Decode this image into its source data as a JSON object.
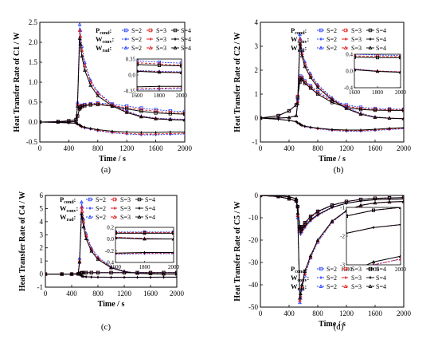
{
  "figure": {
    "legend": {
      "rows": [
        "P",
        "W",
        "W"
      ],
      "row_subscripts": [
        "cond",
        "conv",
        "rad"
      ],
      "cols": [
        "S=2",
        "S=3",
        "S=4"
      ]
    },
    "colors": {
      "S=2": "#1f3cff",
      "S=3": "#e01818",
      "S=4": "#000000"
    }
  },
  "chart_data": [
    {
      "type": "line",
      "panel_label": "(a)",
      "xlabel": "Time / s",
      "ylabel": "Heat Transfer Rate of C1 / W",
      "xlim": [
        0,
        2000
      ],
      "ylim": [
        -0.5,
        2.5
      ],
      "xticks": [
        0,
        400,
        800,
        1200,
        1600,
        2000
      ],
      "yticks": [
        -0.5,
        0.0,
        0.5,
        1.0,
        1.5,
        2.0,
        2.5
      ],
      "x": [
        0,
        250,
        400,
        500,
        520,
        550,
        560,
        580,
        620,
        700,
        800,
        1000,
        1200,
        1400,
        1600,
        1800,
        2000
      ],
      "series": [
        {
          "name": "P_cond S=2",
          "values": [
            0,
            0.01,
            0.03,
            0.06,
            0.15,
            0.36,
            0.4,
            0.42,
            0.44,
            0.46,
            0.48,
            0.45,
            0.4,
            0.35,
            0.31,
            0.28,
            0.26
          ]
        },
        {
          "name": "P_cond S=3",
          "values": [
            0,
            0.01,
            0.03,
            0.06,
            0.15,
            0.34,
            0.38,
            0.4,
            0.42,
            0.44,
            0.46,
            0.42,
            0.36,
            0.31,
            0.27,
            0.24,
            0.22
          ]
        },
        {
          "name": "P_cond S=4",
          "values": [
            0,
            0.01,
            0.03,
            0.06,
            0.15,
            0.33,
            0.37,
            0.39,
            0.41,
            0.43,
            0.44,
            0.4,
            0.33,
            0.27,
            0.23,
            0.21,
            0.2
          ]
        },
        {
          "name": "W_conv S=2",
          "values": [
            0,
            -0.01,
            -0.02,
            -0.03,
            -0.05,
            -0.08,
            -0.1,
            -0.12,
            -0.15,
            -0.18,
            -0.22,
            -0.27,
            -0.3,
            -0.32,
            -0.32,
            -0.31,
            -0.3
          ]
        },
        {
          "name": "W_conv S=3",
          "values": [
            0,
            -0.01,
            -0.02,
            -0.03,
            -0.05,
            -0.08,
            -0.1,
            -0.12,
            -0.14,
            -0.17,
            -0.21,
            -0.26,
            -0.29,
            -0.3,
            -0.3,
            -0.29,
            -0.28
          ]
        },
        {
          "name": "W_conv S=4",
          "values": [
            0,
            -0.01,
            -0.02,
            -0.03,
            -0.05,
            -0.07,
            -0.09,
            -0.11,
            -0.13,
            -0.16,
            -0.19,
            -0.23,
            -0.25,
            -0.26,
            -0.26,
            -0.25,
            -0.25
          ]
        },
        {
          "name": "W_rad S=2",
          "values": [
            0,
            0.0,
            0.0,
            0.02,
            0.5,
            2.45,
            2.3,
            1.9,
            1.5,
            1.05,
            0.75,
            0.45,
            0.28,
            0.15,
            0.1,
            0.08,
            0.07
          ]
        },
        {
          "name": "W_rad S=3",
          "values": [
            0,
            0.0,
            0.0,
            0.02,
            0.45,
            2.3,
            2.15,
            1.8,
            1.42,
            1.0,
            0.72,
            0.43,
            0.26,
            0.14,
            0.09,
            0.07,
            0.06
          ]
        },
        {
          "name": "W_rad S=4",
          "values": [
            0,
            0.0,
            0.0,
            0.02,
            0.4,
            2.1,
            1.95,
            1.65,
            1.3,
            0.92,
            0.66,
            0.4,
            0.24,
            0.13,
            0.08,
            0.06,
            0.05
          ]
        }
      ],
      "inset": {
        "xlim": [
          1600,
          2000
        ],
        "ylim": [
          -0.35,
          0.35
        ],
        "xticks": [
          1600,
          1800,
          2000
        ],
        "yticks": [
          -0.35,
          0.0,
          0.35
        ]
      }
    },
    {
      "type": "line",
      "panel_label": "(b)",
      "xlabel": "Time / s",
      "ylabel": "Heat Transfer Rate of C2 / W",
      "xlim": [
        0,
        2000
      ],
      "ylim": [
        -1,
        4
      ],
      "xticks": [
        0,
        400,
        800,
        1200,
        1600,
        2000
      ],
      "yticks": [
        -1,
        0,
        1,
        2,
        3,
        4
      ],
      "x": [
        0,
        250,
        400,
        500,
        520,
        550,
        560,
        580,
        620,
        700,
        800,
        1000,
        1200,
        1400,
        1600,
        1800,
        2000
      ],
      "series": [
        {
          "name": "P_cond S=2",
          "values": [
            0,
            0.1,
            0.3,
            0.55,
            0.9,
            1.6,
            1.75,
            1.7,
            1.55,
            1.35,
            1.1,
            0.75,
            0.55,
            0.45,
            0.4,
            0.38,
            0.37
          ]
        },
        {
          "name": "P_cond S=3",
          "values": [
            0,
            0.1,
            0.3,
            0.55,
            0.9,
            1.55,
            1.7,
            1.65,
            1.5,
            1.3,
            1.05,
            0.7,
            0.5,
            0.4,
            0.36,
            0.35,
            0.34
          ]
        },
        {
          "name": "P_cond S=4",
          "values": [
            0,
            0.1,
            0.3,
            0.55,
            0.85,
            1.5,
            1.65,
            1.6,
            1.45,
            1.25,
            1.0,
            0.65,
            0.45,
            0.36,
            0.33,
            0.32,
            0.32
          ]
        },
        {
          "name": "W_conv S=2",
          "values": [
            0,
            -0.05,
            -0.1,
            -0.15,
            -0.2,
            -0.25,
            -0.28,
            -0.32,
            -0.36,
            -0.4,
            -0.45,
            -0.52,
            -0.55,
            -0.55,
            -0.52,
            -0.48,
            -0.45
          ]
        },
        {
          "name": "W_conv S=3",
          "values": [
            0,
            -0.05,
            -0.1,
            -0.15,
            -0.2,
            -0.25,
            -0.28,
            -0.31,
            -0.35,
            -0.39,
            -0.44,
            -0.5,
            -0.53,
            -0.53,
            -0.5,
            -0.46,
            -0.43
          ]
        },
        {
          "name": "W_conv S=4",
          "values": [
            0,
            -0.05,
            -0.1,
            -0.15,
            -0.2,
            -0.24,
            -0.27,
            -0.3,
            -0.34,
            -0.38,
            -0.42,
            -0.48,
            -0.5,
            -0.5,
            -0.47,
            -0.43,
            -0.4
          ]
        },
        {
          "name": "W_rad S=2",
          "values": [
            0,
            0.0,
            0.02,
            0.1,
            0.8,
            3.5,
            3.3,
            2.8,
            2.35,
            1.85,
            1.4,
            0.85,
            0.45,
            0.2,
            0.05,
            0.0,
            -0.02
          ]
        },
        {
          "name": "W_rad S=3",
          "values": [
            0,
            0.0,
            0.02,
            0.1,
            0.7,
            3.3,
            3.1,
            2.7,
            2.25,
            1.78,
            1.35,
            0.8,
            0.42,
            0.18,
            0.04,
            0.0,
            -0.02
          ]
        },
        {
          "name": "W_rad S=4",
          "values": [
            0,
            0.0,
            0.02,
            0.1,
            0.6,
            3.1,
            2.95,
            2.6,
            2.15,
            1.7,
            1.28,
            0.76,
            0.4,
            0.16,
            0.03,
            -0.01,
            -0.03
          ]
        }
      ],
      "inset": {
        "xlim": [
          1600,
          2000
        ],
        "ylim": [
          -0.4,
          0.4
        ],
        "xticks": [
          1600,
          1800,
          2000
        ],
        "yticks": [
          -0.4,
          0.0,
          0.4
        ]
      }
    },
    {
      "type": "line",
      "panel_label": "(c)",
      "xlabel": "Time / s",
      "ylabel": "Heat Transfer Rate of C4 / W",
      "xlim": [
        0,
        2000
      ],
      "ylim": [
        -1,
        6
      ],
      "xticks": [
        0,
        400,
        800,
        1200,
        1600,
        2000
      ],
      "yticks": [
        -1,
        0,
        1,
        2,
        3,
        4,
        5,
        6
      ],
      "x": [
        0,
        250,
        400,
        500,
        520,
        550,
        560,
        580,
        620,
        700,
        800,
        1000,
        1200,
        1400,
        1600,
        1800,
        2000
      ],
      "series": [
        {
          "name": "P_cond S=2",
          "values": [
            0,
            0.0,
            0.0,
            0.01,
            0.05,
            0.1,
            0.11,
            0.12,
            0.12,
            0.12,
            0.12,
            0.12,
            0.12,
            0.12,
            0.12,
            0.12,
            0.12
          ]
        },
        {
          "name": "P_cond S=3",
          "values": [
            0,
            0.0,
            0.0,
            0.01,
            0.05,
            0.09,
            0.1,
            0.11,
            0.11,
            0.11,
            0.11,
            0.11,
            0.11,
            0.11,
            0.11,
            0.11,
            0.11
          ]
        },
        {
          "name": "P_cond S=4",
          "values": [
            0,
            0.0,
            0.0,
            0.01,
            0.04,
            0.08,
            0.09,
            0.1,
            0.1,
            0.1,
            0.1,
            0.1,
            0.1,
            0.1,
            0.1,
            0.1,
            0.1
          ]
        },
        {
          "name": "W_conv S=2",
          "values": [
            0,
            0.0,
            0.0,
            -0.01,
            -0.05,
            -0.15,
            -0.18,
            -0.2,
            -0.22,
            -0.24,
            -0.25,
            -0.26,
            -0.26,
            -0.26,
            -0.26,
            -0.25,
            -0.25
          ]
        },
        {
          "name": "W_conv S=3",
          "values": [
            0,
            0.0,
            0.0,
            -0.01,
            -0.05,
            -0.14,
            -0.17,
            -0.19,
            -0.21,
            -0.23,
            -0.24,
            -0.25,
            -0.25,
            -0.25,
            -0.25,
            -0.24,
            -0.24
          ]
        },
        {
          "name": "W_conv S=4",
          "values": [
            0,
            0.0,
            0.0,
            -0.01,
            -0.04,
            -0.13,
            -0.16,
            -0.18,
            -0.2,
            -0.22,
            -0.23,
            -0.24,
            -0.24,
            -0.24,
            -0.24,
            -0.23,
            -0.23
          ]
        },
        {
          "name": "W_rad S=2",
          "values": [
            0,
            0.0,
            0.0,
            0.05,
            1.2,
            5.5,
            5.1,
            4.2,
            3.1,
            2.0,
            1.3,
            0.55,
            0.22,
            0.08,
            0.03,
            0.01,
            0.0
          ]
        },
        {
          "name": "W_rad S=3",
          "values": [
            0,
            0.0,
            0.0,
            0.05,
            1.0,
            5.1,
            4.8,
            4.0,
            2.95,
            1.9,
            1.22,
            0.52,
            0.2,
            0.07,
            0.03,
            0.01,
            0.0
          ]
        },
        {
          "name": "W_rad S=4",
          "values": [
            0,
            0.0,
            0.0,
            0.05,
            0.9,
            4.6,
            4.3,
            3.6,
            2.7,
            1.75,
            1.12,
            0.48,
            0.18,
            0.06,
            0.02,
            0.0,
            0.0
          ]
        }
      ],
      "inset": {
        "xlim": [
          1600,
          2000
        ],
        "ylim": [
          -0.4,
          0.2
        ],
        "xticks": [
          1600,
          1800,
          2000
        ],
        "yticks": [
          -0.4,
          -0.2,
          0.0,
          0.2
        ]
      }
    },
    {
      "type": "line",
      "panel_label": "(d)",
      "xlabel": "Time / s",
      "ylabel": "Heat Transfer Rate of C5 / W",
      "xlim": [
        0,
        2000
      ],
      "ylim": [
        -50,
        0
      ],
      "xticks": [
        0,
        400,
        800,
        1200,
        1600,
        2000
      ],
      "yticks": [
        -50,
        -40,
        -30,
        -20,
        -10,
        0
      ],
      "x": [
        0,
        250,
        400,
        500,
        520,
        550,
        560,
        580,
        620,
        700,
        800,
        1000,
        1200,
        1400,
        1600,
        1800,
        2000
      ],
      "series": [
        {
          "name": "P_cond S=2",
          "values": [
            0,
            -0.5,
            -1.5,
            -2.5,
            -5,
            -15,
            -16,
            -15,
            -13,
            -10,
            -7.5,
            -4.5,
            -2.8,
            -1.8,
            -1.3,
            -1.1,
            -1.0
          ]
        },
        {
          "name": "P_cond S=3",
          "values": [
            0,
            -0.5,
            -1.5,
            -2.5,
            -5,
            -14.5,
            -15.5,
            -14.5,
            -12.6,
            -9.7,
            -7.3,
            -4.4,
            -2.8,
            -1.8,
            -1.3,
            -1.1,
            -1.0
          ]
        },
        {
          "name": "P_cond S=4",
          "values": [
            0,
            -0.5,
            -1.5,
            -2.5,
            -5,
            -14,
            -15,
            -14,
            -12.2,
            -9.4,
            -7.1,
            -4.3,
            -2.7,
            -1.8,
            -1.3,
            -1.1,
            -1.0
          ]
        },
        {
          "name": "W_conv S=2",
          "values": [
            0,
            -0.5,
            -1.5,
            -2.5,
            -5,
            -16,
            -17.5,
            -16.5,
            -14.5,
            -11.5,
            -9,
            -5.5,
            -3.6,
            -2.5,
            -1.9,
            -1.7,
            -1.6
          ]
        },
        {
          "name": "W_conv S=3",
          "values": [
            0,
            -0.5,
            -1.5,
            -2.5,
            -5,
            -15.5,
            -17,
            -16,
            -14.1,
            -11.2,
            -8.8,
            -5.4,
            -3.5,
            -2.5,
            -1.9,
            -1.7,
            -1.6
          ]
        },
        {
          "name": "W_conv S=4",
          "values": [
            0,
            -0.5,
            -1.5,
            -2.5,
            -5,
            -15,
            -16.5,
            -15.5,
            -13.7,
            -10.9,
            -8.6,
            -5.3,
            -3.5,
            -2.5,
            -1.9,
            -1.7,
            -1.6
          ]
        },
        {
          "name": "W_rad S=2",
          "values": [
            0,
            -0.2,
            -0.6,
            -1.5,
            -10,
            -48,
            -46,
            -42,
            -36,
            -28,
            -21,
            -12,
            -7,
            -4.5,
            -3.4,
            -3.0,
            -2.8
          ]
        },
        {
          "name": "W_rad S=3",
          "values": [
            0,
            -0.2,
            -0.6,
            -1.5,
            -9,
            -47,
            -45,
            -41,
            -35,
            -27.5,
            -20.5,
            -11.8,
            -6.9,
            -4.5,
            -3.4,
            -3.0,
            -2.8
          ]
        },
        {
          "name": "W_rad S=4",
          "values": [
            0,
            -0.2,
            -0.6,
            -1.5,
            -8,
            -46,
            -44,
            -40,
            -34,
            -27,
            -20,
            -11.5,
            -6.8,
            -4.4,
            -3.3,
            -2.9,
            -2.7
          ]
        }
      ],
      "inset": {
        "xlim": [
          1600,
          2000
        ],
        "ylim": [
          -3,
          -1
        ],
        "xticks": [
          1600,
          1800,
          2000
        ],
        "yticks": [
          -3,
          -2,
          -1
        ]
      }
    }
  ]
}
